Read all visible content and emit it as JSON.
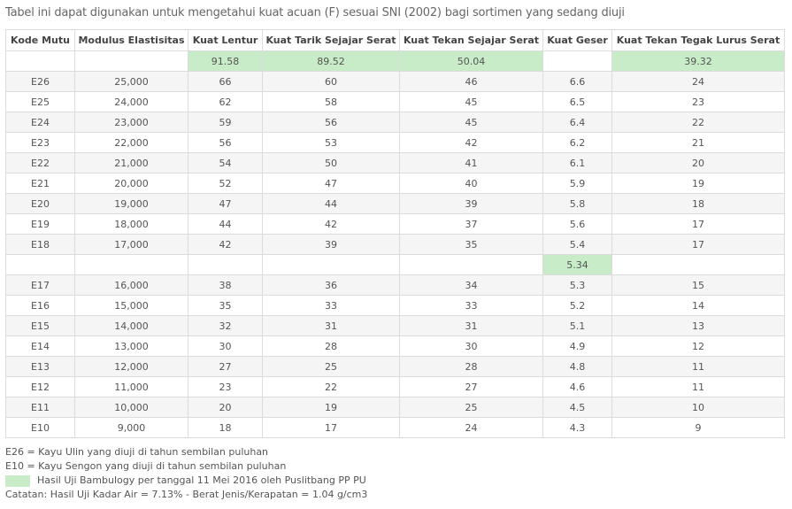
{
  "caption": "Tabel ini dapat digunakan untuk mengetahui kuat acuan (F) sesuai SNI (2002) bagi sortimen yang sedang diuji",
  "table": {
    "headers": [
      "Kode Mutu",
      "Modulus Elastisitas",
      "Kuat Lentur",
      "Kuat Tarik Sejajar Serat",
      "Kuat Tekan Sejajar Serat",
      "Kuat Geser",
      "Kuat Tekan Tegak Lurus Serat"
    ],
    "rows": [
      [
        "",
        "",
        "91.58",
        "89.52",
        "50.04",
        "",
        "39.32"
      ],
      [
        "E26",
        "25,000",
        "66",
        "60",
        "46",
        "6.6",
        "24"
      ],
      [
        "E25",
        "24,000",
        "62",
        "58",
        "45",
        "6.5",
        "23"
      ],
      [
        "E24",
        "23,000",
        "59",
        "56",
        "45",
        "6.4",
        "22"
      ],
      [
        "E23",
        "22,000",
        "56",
        "53",
        "42",
        "6.2",
        "21"
      ],
      [
        "E22",
        "21,000",
        "54",
        "50",
        "41",
        "6.1",
        "20"
      ],
      [
        "E21",
        "20,000",
        "52",
        "47",
        "40",
        "5.9",
        "19"
      ],
      [
        "E20",
        "19,000",
        "47",
        "44",
        "39",
        "5.8",
        "18"
      ],
      [
        "E19",
        "18,000",
        "44",
        "42",
        "37",
        "5.6",
        "17"
      ],
      [
        "E18",
        "17,000",
        "42",
        "39",
        "35",
        "5.4",
        "17"
      ],
      [
        "",
        "",
        "",
        "",
        "",
        "5.34",
        ""
      ],
      [
        "E17",
        "16,000",
        "38",
        "36",
        "34",
        "5.3",
        "15"
      ],
      [
        "E16",
        "15,000",
        "35",
        "33",
        "33",
        "5.2",
        "14"
      ],
      [
        "E15",
        "14,000",
        "32",
        "31",
        "31",
        "5.1",
        "13"
      ],
      [
        "E14",
        "13,000",
        "30",
        "28",
        "30",
        "4.9",
        "12"
      ],
      [
        "E13",
        "12,000",
        "27",
        "25",
        "28",
        "4.8",
        "11"
      ],
      [
        "E12",
        "11,000",
        "23",
        "22",
        "27",
        "4.6",
        "11"
      ],
      [
        "E11",
        "10,000",
        "20",
        "19",
        "25",
        "4.5",
        "10"
      ],
      [
        "E10",
        "9,000",
        "18",
        "17",
        "24",
        "4.3",
        "9"
      ]
    ],
    "highlights": [
      [
        0,
        2
      ],
      [
        0,
        3
      ],
      [
        0,
        4
      ],
      [
        0,
        6
      ],
      [
        10,
        5
      ]
    ],
    "highlight_color": "#c8ecc8"
  },
  "notes": {
    "e26": "E26 = Kayu Ulin yang diuji di tahun sembilan puluhan",
    "e10": "E10 = Kayu Sengon yang diuji di tahun sembilan puluhan",
    "legend": "Hasil Uji Bambulogy per tanggal 11 Mei 2016 oleh Puslitbang PP PU",
    "catatan": "Catatan: Hasil Uji Kadar Air = 7.13% - Berat Jenis/Kerapatan = 1.04 g/cm3"
  }
}
